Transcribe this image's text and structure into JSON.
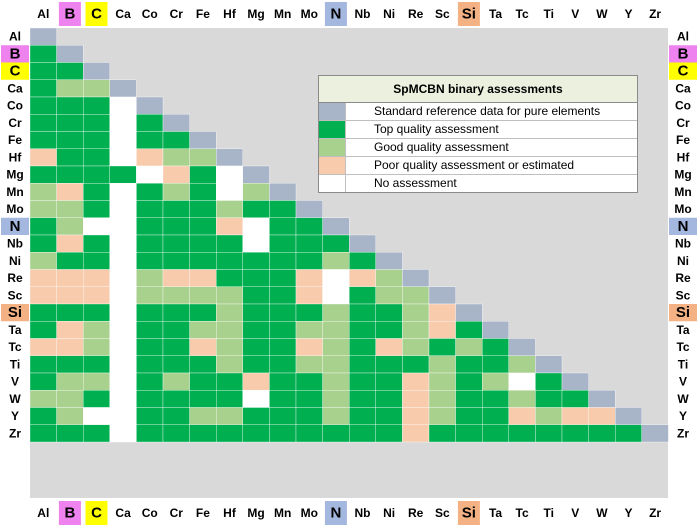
{
  "chart_data": {
    "type": "heatmap",
    "title": "SpMCBN binary assessments",
    "elements": [
      "Al",
      "B",
      "C",
      "Ca",
      "Co",
      "Cr",
      "Fe",
      "Hf",
      "Mg",
      "Mn",
      "Mo",
      "N",
      "Nb",
      "Ni",
      "Re",
      "Sc",
      "Si",
      "Ta",
      "Tc",
      "Ti",
      "V",
      "W",
      "Y",
      "Zr"
    ],
    "highlight_elements": {
      "B": "#ee82ee",
      "C": "#ffff00",
      "N": "#a4b7de",
      "Si": "#f4b183"
    },
    "legend": [
      {
        "key": "R",
        "label": "Standard reference data for pure elements",
        "color": "#a8b4c8"
      },
      {
        "key": "T",
        "label": "Top quality assessment",
        "color": "#00b050"
      },
      {
        "key": "G",
        "label": "Good quality assessment",
        "color": "#a9d18e"
      },
      {
        "key": "P",
        "label": "Poor quality assessment or estimated",
        "color": "#f8cbad"
      },
      {
        "key": "N",
        "label": "No assessment",
        "color": "#ffffff"
      }
    ],
    "matrix_rows": [
      "R",
      "TR",
      "TTR",
      "TGGR",
      "TTTNR",
      "TTTNTR",
      "TTTNTTR",
      "PTTNPGGR",
      "TTTTNPTNR",
      "GPTNTGTNGR",
      "GGTNTTTGTTR",
      "TGNNTTTPNTTR",
      "TPTNTTTTNTTTR",
      "GTTNTTTTTTTGTR",
      "PPPNGPPTTTPNPGR",
      "PPPNGGGGTTPNTGGR",
      "TTTNTTTGTTTGTTGPR",
      "TPGNTTGGTTGGTTGPTR",
      "PPGNTTPGTTPGTPGTGTR",
      "TTTNTTTGTTGGTTTGTTGR",
      "TGGNTGTTPTTGTTPGTGNTR",
      "GGTNTTTTNTTGTTPGTTGTTR",
      "TGNNTTGGTTTGTTPGTTPGPPR",
      "TTTNTTTTTTTTTTPTTTTTTTTR"
    ]
  }
}
